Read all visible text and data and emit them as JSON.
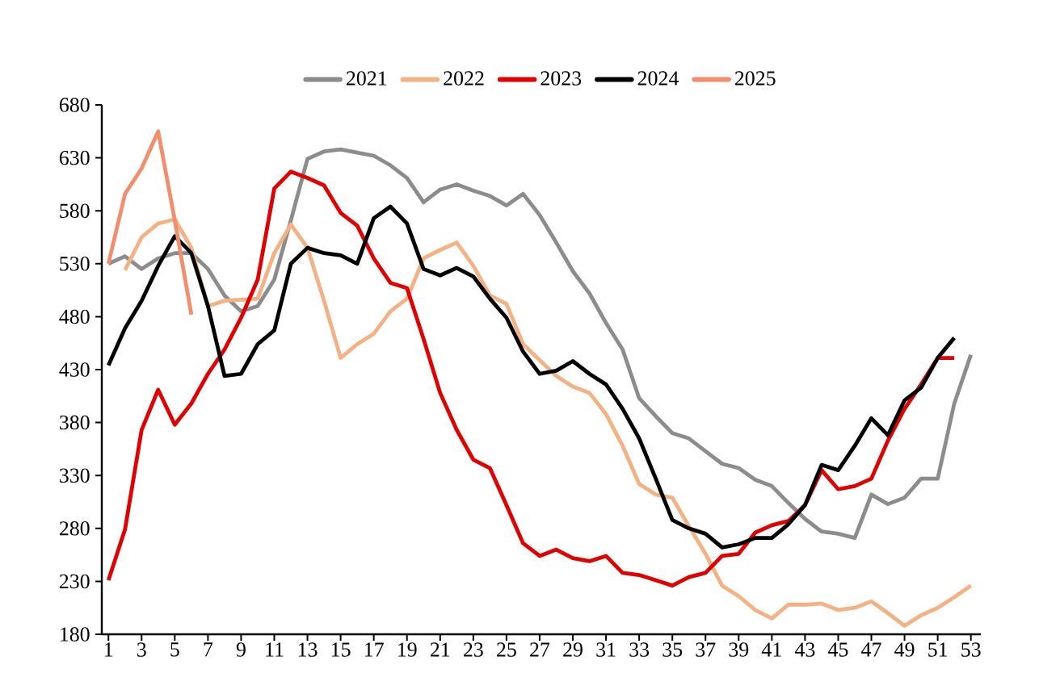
{
  "chart_data": {
    "type": "line",
    "legend": "top",
    "grid": false,
    "marker": "none",
    "line_style": "solid",
    "x": [
      1,
      2,
      3,
      4,
      5,
      6,
      7,
      8,
      9,
      10,
      11,
      12,
      13,
      14,
      15,
      16,
      17,
      18,
      19,
      20,
      21,
      22,
      23,
      24,
      25,
      26,
      27,
      28,
      29,
      30,
      31,
      32,
      33,
      34,
      35,
      36,
      37,
      38,
      39,
      40,
      41,
      42,
      43,
      44,
      45,
      46,
      47,
      48,
      49,
      50,
      51,
      52,
      53
    ],
    "xlim": [
      0.6,
      53.6
    ],
    "xticks": [
      1,
      3,
      5,
      7,
      9,
      11,
      13,
      15,
      17,
      19,
      21,
      23,
      25,
      27,
      29,
      31,
      33,
      35,
      37,
      39,
      41,
      43,
      45,
      47,
      49,
      51,
      53
    ],
    "ylim": [
      180,
      680
    ],
    "yticks": [
      180,
      230,
      280,
      330,
      380,
      430,
      480,
      530,
      580,
      630,
      680
    ],
    "series": [
      {
        "name": "2021",
        "color": "#8c8c8c",
        "values": [
          530,
          537,
          525,
          535,
          540,
          540,
          525,
          500,
          485,
          490,
          515,
          571,
          629,
          636,
          638,
          635,
          632,
          623,
          611,
          588,
          600,
          605,
          599,
          594,
          585,
          596,
          576,
          550,
          523,
          502,
          474,
          449,
          403,
          386,
          370,
          365,
          353,
          341,
          337,
          326,
          320,
          304,
          289,
          277,
          275,
          271,
          312,
          303,
          309,
          327,
          327,
          398,
          444
        ]
      },
      {
        "name": "2022",
        "color": "#f4b183",
        "values": [
          null,
          524,
          555,
          568,
          572,
          545,
          490,
          495,
          496,
          497,
          540,
          567,
          545,
          495,
          441,
          454,
          464,
          485,
          497,
          535,
          543,
          550,
          528,
          500,
          492,
          454,
          439,
          424,
          414,
          408,
          388,
          358,
          322,
          312,
          309,
          282,
          256,
          226,
          216,
          203,
          195,
          208,
          208,
          209,
          203,
          205,
          211,
          200,
          188,
          198,
          205,
          215,
          226
        ]
      },
      {
        "name": "2023",
        "color": "#e00000",
        "values": [
          231,
          279,
          373,
          411,
          378,
          398,
          426,
          449,
          479,
          515,
          601,
          617,
          611,
          604,
          578,
          566,
          535,
          512,
          507,
          459,
          408,
          373,
          345,
          337,
          302,
          266,
          254,
          260,
          252,
          249,
          254,
          238,
          236,
          231,
          226,
          234,
          238,
          254,
          256,
          276,
          283,
          287,
          302,
          335,
          317,
          320,
          327,
          363,
          393,
          416,
          441,
          441,
          null
        ]
      },
      {
        "name": "2024",
        "color": "#000000",
        "values": [
          434,
          469,
          495,
          528,
          556,
          540,
          490,
          424,
          426,
          454,
          467,
          530,
          545,
          540,
          538,
          530,
          573,
          584,
          568,
          525,
          519,
          526,
          518,
          497,
          479,
          447,
          426,
          429,
          438,
          426,
          416,
          393,
          365,
          327,
          288,
          280,
          275,
          262,
          265,
          271,
          271,
          284,
          302,
          340,
          335,
          358,
          384,
          368,
          401,
          413,
          441,
          460,
          null
        ]
      },
      {
        "name": "2025",
        "color": "#f28e6c",
        "values": [
          530,
          596,
          620,
          655,
          571,
          482,
          null,
          null,
          null,
          null,
          null,
          null,
          null,
          null,
          null,
          null,
          null,
          null,
          null,
          null,
          null,
          null,
          null,
          null,
          null,
          null,
          null,
          null,
          null,
          null,
          null,
          null,
          null,
          null,
          null,
          null,
          null,
          null,
          null,
          null,
          null,
          null,
          null,
          null,
          null,
          null,
          null,
          null,
          null,
          null,
          null,
          null,
          null
        ]
      }
    ]
  }
}
